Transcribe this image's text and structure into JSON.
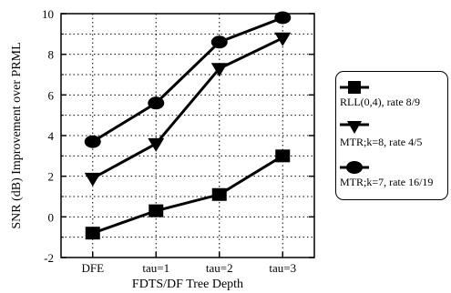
{
  "chart_data": {
    "type": "line",
    "title": "",
    "xlabel": "FDTS/DF Tree Depth",
    "ylabel": "SNR (dB) Improvement over PRML",
    "categories": [
      "DFE",
      "tau=1",
      "tau=2",
      "tau=3"
    ],
    "ylim": [
      -2,
      10
    ],
    "yticks": [
      "-2",
      "0",
      "2",
      "4",
      "6",
      "8",
      "10"
    ],
    "grid": "dotted",
    "legend_placement": "right",
    "series": [
      {
        "name": "RLL(0,4), rate 8/9",
        "marker": "square",
        "values": [
          -0.8,
          0.3,
          1.1,
          3.0
        ]
      },
      {
        "name": "MTR;k=8, rate 4/5",
        "marker": "triangle-down",
        "values": [
          1.9,
          3.6,
          7.3,
          8.8
        ]
      },
      {
        "name": "MTR;k=7, rate 16/19",
        "marker": "circle",
        "values": [
          3.7,
          5.6,
          8.6,
          9.8
        ]
      }
    ]
  }
}
